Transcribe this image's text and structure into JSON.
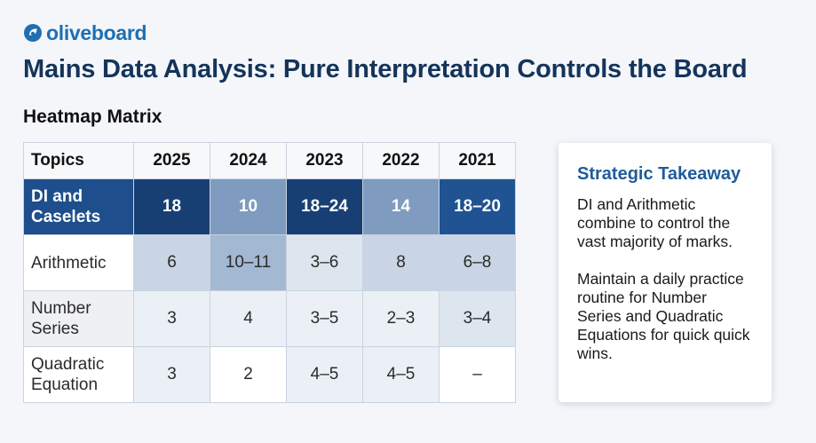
{
  "brand": {
    "logo_text": "oliveboard",
    "accent_color": "#1f6fb2"
  },
  "header": {
    "title": "Mains Data Analysis: Pure Interpretation Controls the Board"
  },
  "heatmap": {
    "section_title": "Heatmap Matrix",
    "columns": [
      "Topics",
      "2025",
      "2024",
      "2023",
      "2022",
      "2021"
    ],
    "rows": [
      {
        "topic": "DI and Caselets",
        "values": [
          "18",
          "10",
          "18–24",
          "14",
          "18–20"
        ]
      },
      {
        "topic": "Arithmetic",
        "values": [
          "6",
          "10–11",
          "3–6",
          "8",
          "6–8"
        ]
      },
      {
        "topic": "Number Series",
        "values": [
          "3",
          "4",
          "3–5",
          "2–3",
          "3–4"
        ]
      },
      {
        "topic": "Quadratic Equation",
        "values": [
          "3",
          "2",
          "4–5",
          "4–5",
          "–"
        ]
      }
    ],
    "colors": {
      "darkest": "#183f74",
      "dark": "#1f5391",
      "mid": "#7f9cc0",
      "light": "#c9d5e4",
      "lightest": "#ebf0f6"
    }
  },
  "takeaway": {
    "title": "Strategic Takeaway",
    "paragraphs": [
      "DI and Arithmetic combine to control the vast majority of marks.",
      "Maintain a daily practice routine for Number Series and Quadratic Equations for quick quick wins."
    ]
  }
}
